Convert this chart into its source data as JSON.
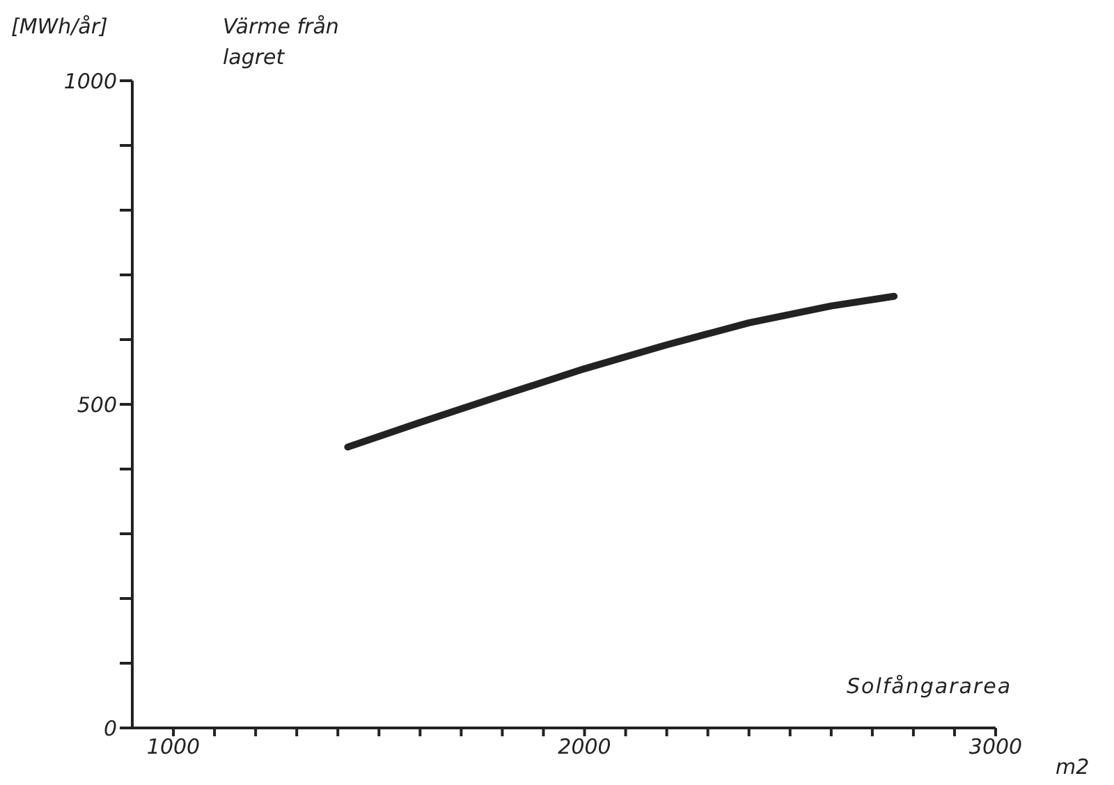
{
  "chart_data": {
    "type": "line",
    "title": "Värme från\nlagret",
    "ylabel": "[MWh/år]",
    "xlabel": "Solfångararea",
    "annotations": [
      "m2"
    ],
    "x": [
      1424,
      1600,
      1800,
      2000,
      2200,
      2400,
      2600,
      2753
    ],
    "series": [
      {
        "color": "#222222",
        "values": [
          434,
          472,
          514,
          555,
          592,
          626,
          652,
          667
        ]
      }
    ],
    "xlim": [
      900,
      3000
    ],
    "xticks": [
      1000,
      {
        "value": 1100,
        "label": null
      },
      {
        "value": 1200,
        "label": null
      },
      {
        "value": 1300,
        "label": null
      },
      {
        "value": 1400,
        "label": null
      },
      {
        "value": 1500,
        "label": null
      },
      {
        "value": 1600,
        "label": null
      },
      {
        "value": 1700,
        "label": null
      },
      {
        "value": 1800,
        "label": null
      },
      {
        "value": 1900,
        "label": null
      },
      2000,
      {
        "value": 2100,
        "label": null
      },
      {
        "value": 2200,
        "label": null
      },
      {
        "value": 2300,
        "label": null
      },
      {
        "value": 2400,
        "label": null
      },
      {
        "value": 2500,
        "label": null
      },
      {
        "value": 2600,
        "label": null
      },
      {
        "value": 2700,
        "label": null
      },
      {
        "value": 2800,
        "label": null
      },
      {
        "value": 2900,
        "label": null
      },
      3000
    ],
    "ylim": [
      0,
      1000
    ],
    "yticks": [
      0,
      {
        "value": 100,
        "label": null
      },
      {
        "value": 200,
        "label": null
      },
      {
        "value": 300,
        "label": null
      },
      {
        "value": 400,
        "label": null
      },
      500,
      {
        "value": 600,
        "label": null
      },
      {
        "value": 700,
        "label": null
      },
      {
        "value": 800,
        "label": null
      },
      {
        "value": 900,
        "label": null
      },
      1000
    ],
    "grid": false,
    "legend": false,
    "marker": "none",
    "line_style": "solid"
  }
}
